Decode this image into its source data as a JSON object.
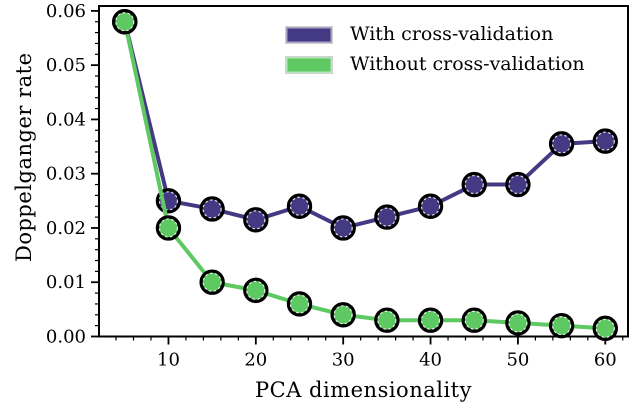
{
  "figure": {
    "xlabel": "PCA dimensionality",
    "ylabel": "Doppelganger rate",
    "background": "#ffffff",
    "axis_color": "#000000"
  },
  "legend": {
    "items": [
      {
        "label": "With cross-validation",
        "color": "#443983"
      },
      {
        "label": "Without cross-validation",
        "color": "#5ec963"
      }
    ]
  },
  "chart_data": {
    "type": "line",
    "title": "",
    "xlabel": "PCA dimensionality",
    "ylabel": "Doppelganger rate",
    "x": [
      5,
      10,
      15,
      20,
      25,
      30,
      35,
      40,
      45,
      50,
      55,
      60
    ],
    "series": [
      {
        "name": "With cross-validation",
        "color": "#443983",
        "values": [
          0.058,
          0.025,
          0.0235,
          0.0215,
          0.024,
          0.02,
          0.022,
          0.024,
          0.028,
          0.028,
          0.0355,
          0.036
        ]
      },
      {
        "name": "Without cross-validation",
        "color": "#5ec963",
        "values": [
          0.058,
          0.02,
          0.01,
          0.0085,
          0.006,
          0.004,
          0.003,
          0.003,
          0.003,
          0.0025,
          0.002,
          0.0015
        ]
      }
    ],
    "xlim": [
      2.05,
      62.6
    ],
    "ylim": [
      0,
      0.0609
    ],
    "x_ticks": [
      10,
      20,
      30,
      40,
      50,
      60
    ],
    "y_ticks": [
      0.0,
      0.01,
      0.02,
      0.03,
      0.04,
      0.05,
      0.06
    ],
    "y_tick_labels": [
      "0.00",
      "0.01",
      "0.02",
      "0.03",
      "0.04",
      "0.05",
      "0.06"
    ],
    "x_minor_step": 2,
    "y_minor_step": 0.002,
    "grid": false,
    "legend_position": "upper-right-inside",
    "marker": "circle-black-edge"
  }
}
